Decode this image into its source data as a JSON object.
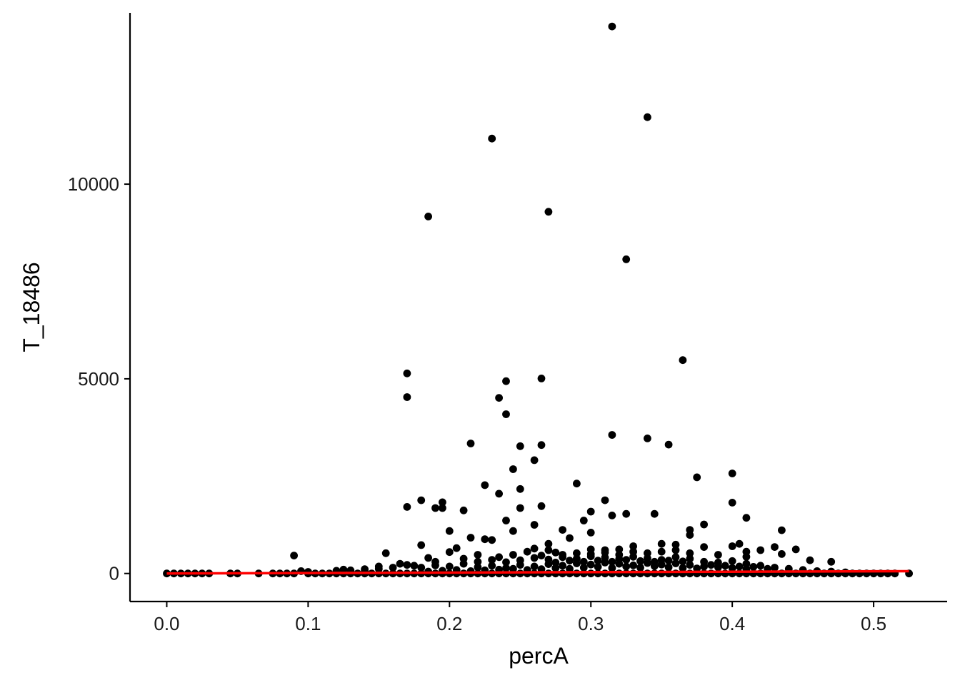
{
  "chart_data": {
    "type": "scatter",
    "title": "",
    "xlabel": "percA",
    "ylabel": "T_18486",
    "xlim": [
      -0.026,
      0.552
    ],
    "ylim": [
      -720,
      14400
    ],
    "x_ticks": [
      0.0,
      0.1,
      0.2,
      0.3,
      0.4,
      0.5
    ],
    "x_tick_labels": [
      "0.0",
      "0.1",
      "0.2",
      "0.3",
      "0.4",
      "0.5"
    ],
    "y_ticks": [
      0,
      5000,
      10000
    ],
    "y_tick_labels": [
      "0",
      "5000",
      "10000"
    ],
    "grid": false,
    "legend": "none",
    "colors": {
      "points": "#000000",
      "trend_line": "#ff0000"
    },
    "trend_line": {
      "x": [
        0.0,
        0.525
      ],
      "y": [
        0,
        60
      ]
    },
    "points": [
      [
        0.315,
        14050
      ],
      [
        0.34,
        11720
      ],
      [
        0.23,
        11170
      ],
      [
        0.185,
        9170
      ],
      [
        0.27,
        9290
      ],
      [
        0.325,
        8070
      ],
      [
        0.365,
        5480
      ],
      [
        0.17,
        5140
      ],
      [
        0.17,
        4530
      ],
      [
        0.24,
        4940
      ],
      [
        0.265,
        5010
      ],
      [
        0.235,
        4510
      ],
      [
        0.24,
        4090
      ],
      [
        0.315,
        3560
      ],
      [
        0.34,
        3470
      ],
      [
        0.355,
        3310
      ],
      [
        0.215,
        3340
      ],
      [
        0.25,
        3270
      ],
      [
        0.265,
        3300
      ],
      [
        0.26,
        2910
      ],
      [
        0.245,
        2680
      ],
      [
        0.4,
        2570
      ],
      [
        0.375,
        2470
      ],
      [
        0.225,
        2270
      ],
      [
        0.29,
        2310
      ],
      [
        0.25,
        2170
      ],
      [
        0.235,
        2050
      ],
      [
        0.31,
        1880
      ],
      [
        0.18,
        1880
      ],
      [
        0.195,
        1830
      ],
      [
        0.17,
        1710
      ],
      [
        0.19,
        1680
      ],
      [
        0.195,
        1680
      ],
      [
        0.21,
        1620
      ],
      [
        0.25,
        1680
      ],
      [
        0.265,
        1730
      ],
      [
        0.4,
        1820
      ],
      [
        0.3,
        1590
      ],
      [
        0.315,
        1490
      ],
      [
        0.325,
        1530
      ],
      [
        0.345,
        1530
      ],
      [
        0.41,
        1430
      ],
      [
        0.24,
        1360
      ],
      [
        0.295,
        1360
      ],
      [
        0.26,
        1250
      ],
      [
        0.38,
        1260
      ],
      [
        0.2,
        1090
      ],
      [
        0.245,
        1090
      ],
      [
        0.28,
        1120
      ],
      [
        0.3,
        1050
      ],
      [
        0.37,
        1120
      ],
      [
        0.435,
        1110
      ],
      [
        0.215,
        920
      ],
      [
        0.225,
        880
      ],
      [
        0.285,
        910
      ],
      [
        0.37,
        990
      ],
      [
        0.23,
        860
      ],
      [
        0.35,
        760
      ],
      [
        0.36,
        740
      ],
      [
        0.4,
        700
      ],
      [
        0.405,
        760
      ],
      [
        0.43,
        680
      ],
      [
        0.445,
        620
      ],
      [
        0.09,
        460
      ],
      [
        0.155,
        520
      ],
      [
        0.2,
        550
      ],
      [
        0.205,
        650
      ],
      [
        0.18,
        730
      ],
      [
        0.22,
        480
      ],
      [
        0.27,
        760
      ],
      [
        0.3,
        620
      ],
      [
        0.33,
        700
      ],
      [
        0.38,
        680
      ],
      [
        0.41,
        560
      ],
      [
        0.42,
        600
      ],
      [
        0.435,
        500
      ],
      [
        0.455,
        340
      ],
      [
        0.47,
        300
      ],
      [
        0.41,
        430
      ],
      [
        0.39,
        480
      ],
      [
        0.35,
        560
      ],
      [
        0.32,
        480
      ],
      [
        0.31,
        600
      ],
      [
        0.29,
        520
      ],
      [
        0.255,
        560
      ],
      [
        0.265,
        460
      ],
      [
        0.275,
        540
      ],
      [
        0.245,
        480
      ],
      [
        0.235,
        420
      ],
      [
        0.21,
        380
      ],
      [
        0.19,
        300
      ],
      [
        0.185,
        400
      ],
      [
        0.165,
        250
      ],
      [
        0.175,
        200
      ],
      [
        0.15,
        180
      ],
      [
        0.14,
        110
      ],
      [
        0.13,
        80
      ],
      [
        0.125,
        100
      ],
      [
        0.12,
        70
      ],
      [
        0.1,
        40
      ],
      [
        0.095,
        60
      ],
      [
        0.0,
        0
      ],
      [
        0.005,
        0
      ],
      [
        0.01,
        0
      ],
      [
        0.015,
        0
      ],
      [
        0.02,
        0
      ],
      [
        0.025,
        0
      ],
      [
        0.03,
        0
      ],
      [
        0.045,
        0
      ],
      [
        0.05,
        0
      ],
      [
        0.065,
        0
      ],
      [
        0.075,
        0
      ],
      [
        0.08,
        0
      ],
      [
        0.085,
        0
      ],
      [
        0.09,
        0
      ],
      [
        0.1,
        0
      ],
      [
        0.105,
        0
      ],
      [
        0.11,
        0
      ],
      [
        0.115,
        0
      ],
      [
        0.12,
        0
      ],
      [
        0.125,
        0
      ],
      [
        0.13,
        0
      ],
      [
        0.135,
        0
      ],
      [
        0.14,
        0
      ],
      [
        0.145,
        0
      ],
      [
        0.15,
        0
      ],
      [
        0.155,
        0
      ],
      [
        0.16,
        0
      ],
      [
        0.165,
        0
      ],
      [
        0.17,
        0
      ],
      [
        0.175,
        0
      ],
      [
        0.18,
        0
      ],
      [
        0.185,
        0
      ],
      [
        0.19,
        0
      ],
      [
        0.195,
        0
      ],
      [
        0.2,
        0
      ],
      [
        0.205,
        0
      ],
      [
        0.21,
        0
      ],
      [
        0.215,
        0
      ],
      [
        0.22,
        0
      ],
      [
        0.225,
        0
      ],
      [
        0.23,
        0
      ],
      [
        0.235,
        0
      ],
      [
        0.24,
        0
      ],
      [
        0.245,
        0
      ],
      [
        0.25,
        0
      ],
      [
        0.255,
        0
      ],
      [
        0.26,
        0
      ],
      [
        0.265,
        0
      ],
      [
        0.27,
        0
      ],
      [
        0.275,
        0
      ],
      [
        0.28,
        0
      ],
      [
        0.285,
        0
      ],
      [
        0.29,
        0
      ],
      [
        0.295,
        0
      ],
      [
        0.3,
        0
      ],
      [
        0.305,
        0
      ],
      [
        0.31,
        0
      ],
      [
        0.315,
        0
      ],
      [
        0.32,
        0
      ],
      [
        0.325,
        0
      ],
      [
        0.33,
        0
      ],
      [
        0.335,
        0
      ],
      [
        0.34,
        0
      ],
      [
        0.345,
        0
      ],
      [
        0.35,
        0
      ],
      [
        0.355,
        0
      ],
      [
        0.36,
        0
      ],
      [
        0.365,
        0
      ],
      [
        0.37,
        0
      ],
      [
        0.375,
        0
      ],
      [
        0.38,
        0
      ],
      [
        0.385,
        0
      ],
      [
        0.39,
        0
      ],
      [
        0.395,
        0
      ],
      [
        0.4,
        0
      ],
      [
        0.405,
        0
      ],
      [
        0.41,
        0
      ],
      [
        0.415,
        0
      ],
      [
        0.42,
        0
      ],
      [
        0.425,
        0
      ],
      [
        0.43,
        0
      ],
      [
        0.435,
        0
      ],
      [
        0.44,
        0
      ],
      [
        0.445,
        0
      ],
      [
        0.45,
        0
      ],
      [
        0.455,
        0
      ],
      [
        0.46,
        0
      ],
      [
        0.465,
        0
      ],
      [
        0.47,
        0
      ],
      [
        0.475,
        0
      ],
      [
        0.48,
        0
      ],
      [
        0.485,
        0
      ],
      [
        0.49,
        0
      ],
      [
        0.495,
        0
      ],
      [
        0.5,
        0
      ],
      [
        0.505,
        0
      ],
      [
        0.51,
        0
      ],
      [
        0.515,
        0
      ],
      [
        0.525,
        0
      ],
      [
        0.14,
        60
      ],
      [
        0.15,
        120
      ],
      [
        0.16,
        150
      ],
      [
        0.17,
        220
      ],
      [
        0.18,
        150
      ],
      [
        0.19,
        210
      ],
      [
        0.2,
        180
      ],
      [
        0.21,
        250
      ],
      [
        0.22,
        300
      ],
      [
        0.23,
        350
      ],
      [
        0.24,
        290
      ],
      [
        0.25,
        340
      ],
      [
        0.26,
        400
      ],
      [
        0.27,
        360
      ],
      [
        0.28,
        420
      ],
      [
        0.29,
        380
      ],
      [
        0.3,
        440
      ],
      [
        0.31,
        410
      ],
      [
        0.32,
        370
      ],
      [
        0.33,
        430
      ],
      [
        0.34,
        390
      ],
      [
        0.35,
        350
      ],
      [
        0.36,
        420
      ],
      [
        0.37,
        380
      ],
      [
        0.38,
        300
      ],
      [
        0.39,
        280
      ],
      [
        0.4,
        320
      ],
      [
        0.41,
        250
      ],
      [
        0.42,
        200
      ],
      [
        0.43,
        150
      ],
      [
        0.44,
        120
      ],
      [
        0.45,
        90
      ],
      [
        0.46,
        60
      ],
      [
        0.47,
        50
      ],
      [
        0.48,
        30
      ],
      [
        0.22,
        160
      ],
      [
        0.23,
        200
      ],
      [
        0.24,
        140
      ],
      [
        0.25,
        220
      ],
      [
        0.26,
        180
      ],
      [
        0.27,
        240
      ],
      [
        0.28,
        200
      ],
      [
        0.29,
        260
      ],
      [
        0.3,
        230
      ],
      [
        0.31,
        280
      ],
      [
        0.32,
        250
      ],
      [
        0.33,
        210
      ],
      [
        0.34,
        270
      ],
      [
        0.35,
        230
      ],
      [
        0.36,
        260
      ],
      [
        0.37,
        220
      ],
      [
        0.38,
        180
      ],
      [
        0.39,
        160
      ],
      [
        0.4,
        140
      ],
      [
        0.41,
        110
      ],
      [
        0.285,
        120
      ],
      [
        0.295,
        150
      ],
      [
        0.305,
        170
      ],
      [
        0.315,
        140
      ],
      [
        0.325,
        180
      ],
      [
        0.335,
        150
      ],
      [
        0.345,
        190
      ],
      [
        0.355,
        160
      ],
      [
        0.365,
        140
      ],
      [
        0.375,
        130
      ],
      [
        0.265,
        110
      ],
      [
        0.275,
        140
      ],
      [
        0.255,
        90
      ],
      [
        0.245,
        120
      ],
      [
        0.235,
        100
      ],
      [
        0.225,
        80
      ],
      [
        0.215,
        60
      ],
      [
        0.205,
        90
      ],
      [
        0.195,
        70
      ],
      [
        0.185,
        50
      ],
      [
        0.305,
        330
      ],
      [
        0.315,
        300
      ],
      [
        0.325,
        350
      ],
      [
        0.335,
        320
      ],
      [
        0.345,
        300
      ],
      [
        0.355,
        330
      ],
      [
        0.365,
        310
      ],
      [
        0.295,
        300
      ],
      [
        0.285,
        330
      ],
      [
        0.275,
        280
      ],
      [
        0.385,
        220
      ],
      [
        0.395,
        200
      ],
      [
        0.405,
        180
      ],
      [
        0.415,
        170
      ],
      [
        0.425,
        120
      ],
      [
        0.33,
        560
      ],
      [
        0.34,
        520
      ],
      [
        0.36,
        600
      ],
      [
        0.37,
        520
      ],
      [
        0.32,
        620
      ],
      [
        0.3,
        500
      ],
      [
        0.31,
        540
      ],
      [
        0.28,
        480
      ],
      [
        0.27,
        600
      ],
      [
        0.26,
        640
      ]
    ]
  }
}
